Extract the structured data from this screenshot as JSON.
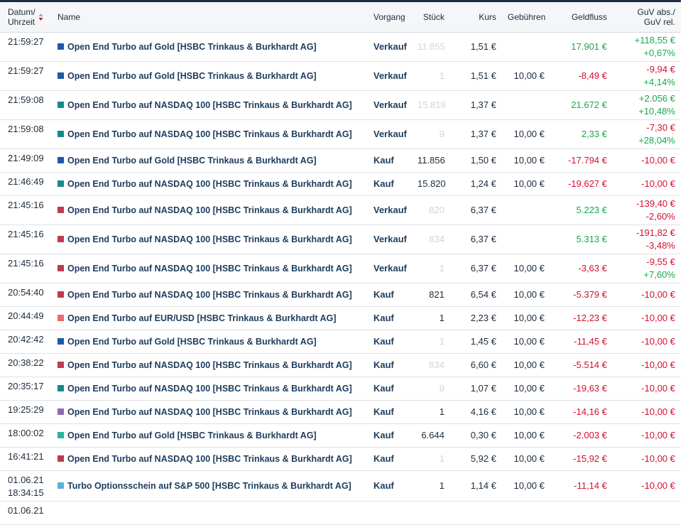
{
  "header": {
    "date": [
      "Datum/",
      "Uhrzeit"
    ],
    "name": "Name",
    "action": "Vorgang",
    "qty": "Stück",
    "price": "Kurs",
    "fees": "Gebühren",
    "cashflow": "Geldfluss",
    "pnl": [
      "GuV abs./",
      "GuV rel."
    ]
  },
  "rows": [
    {
      "time": "21:59:27",
      "color": "#1b5aa6",
      "name": "Open End Turbo auf Gold [HSBC Trinkaus & Burkhardt AG]",
      "action": "Verkauf",
      "qty": "11.855",
      "qty_faded": true,
      "price": "1,51 €",
      "cashflow": "17.901 €",
      "pnl_abs": "+118,55 €",
      "pnl_rel": "+0,67%"
    },
    {
      "time": "21:59:27",
      "color": "#1b5aa6",
      "name": "Open End Turbo auf Gold [HSBC Trinkaus & Burkhardt AG]",
      "action": "Verkauf",
      "qty": "1",
      "qty_faded": true,
      "price": "1,51 €",
      "fees": "10,00 €",
      "cashflow": "-8,49 €",
      "pnl_abs": "-9,94 €",
      "pnl_rel": "+4,14%"
    },
    {
      "time": "21:59:08",
      "color": "#168a8a",
      "name": "Open End Turbo auf NASDAQ 100 [HSBC Trinkaus & Burkhardt AG]",
      "action": "Verkauf",
      "qty": "15.819",
      "qty_faded": true,
      "price": "1,37 €",
      "cashflow": "21.672 €",
      "pnl_abs": "+2.056 €",
      "pnl_rel": "+10,48%"
    },
    {
      "time": "21:59:08",
      "color": "#168a8a",
      "name": "Open End Turbo auf NASDAQ 100 [HSBC Trinkaus & Burkhardt AG]",
      "action": "Verkauf",
      "qty": "9",
      "qty_faded": true,
      "price": "1,37 €",
      "fees": "10,00 €",
      "cashflow": "2,33 €",
      "pnl_abs": "-7,30 €",
      "pnl_rel": "+28,04%"
    },
    {
      "time": "21:49:09",
      "color": "#1b5aa6",
      "name": "Open End Turbo auf Gold [HSBC Trinkaus & Burkhardt AG]",
      "action": "Kauf",
      "qty": "11.856",
      "qty_faded": false,
      "price": "1,50 €",
      "fees": "10,00 €",
      "cashflow": "-17.794 €",
      "pnl_abs": "-10,00 €"
    },
    {
      "time": "21:46:49",
      "color": "#168a8a",
      "name": "Open End Turbo auf NASDAQ 100 [HSBC Trinkaus & Burkhardt AG]",
      "action": "Kauf",
      "qty": "15.820",
      "qty_faded": false,
      "price": "1,24 €",
      "fees": "10,00 €",
      "cashflow": "-19.627 €",
      "pnl_abs": "-10,00 €"
    },
    {
      "time": "21:45:16",
      "color": "#c03a4e",
      "name": "Open End Turbo auf NASDAQ 100 [HSBC Trinkaus & Burkhardt AG]",
      "action": "Verkauf",
      "qty": "820",
      "qty_faded": true,
      "price": "6,37 €",
      "cashflow": "5.223 €",
      "pnl_abs": "-139,40 €",
      "pnl_rel": "-2,60%"
    },
    {
      "time": "21:45:16",
      "color": "#c03a4e",
      "name": "Open End Turbo auf NASDAQ 100 [HSBC Trinkaus & Burkhardt AG]",
      "action": "Verkauf",
      "qty": "834",
      "qty_faded": true,
      "price": "6,37 €",
      "cashflow": "5.313 €",
      "pnl_abs": "-191,82 €",
      "pnl_rel": "-3,48%"
    },
    {
      "time": "21:45:16",
      "color": "#c03a4e",
      "name": "Open End Turbo auf NASDAQ 100 [HSBC Trinkaus & Burkhardt AG]",
      "action": "Verkauf",
      "qty": "1",
      "qty_faded": true,
      "price": "6,37 €",
      "fees": "10,00 €",
      "cashflow": "-3,63 €",
      "pnl_abs": "-9,55 €",
      "pnl_rel": "+7,60%"
    },
    {
      "time": "20:54:40",
      "color": "#c03a4e",
      "name": "Open End Turbo auf NASDAQ 100 [HSBC Trinkaus & Burkhardt AG]",
      "action": "Kauf",
      "qty": "821",
      "qty_faded": false,
      "price": "6,54 €",
      "fees": "10,00 €",
      "cashflow": "-5.379 €",
      "pnl_abs": "-10,00 €"
    },
    {
      "time": "20:44:49",
      "color": "#e86a6a",
      "name": "Open End Turbo auf EUR/USD [HSBC Trinkaus & Burkhardt AG]",
      "action": "Kauf",
      "qty": "1",
      "qty_faded": false,
      "price": "2,23 €",
      "fees": "10,00 €",
      "cashflow": "-12,23 €",
      "pnl_abs": "-10,00 €"
    },
    {
      "time": "20:42:42",
      "color": "#1b5aa6",
      "name": "Open End Turbo auf Gold [HSBC Trinkaus & Burkhardt AG]",
      "action": "Kauf",
      "qty": "1",
      "qty_faded": true,
      "price": "1,45 €",
      "fees": "10,00 €",
      "cashflow": "-11,45 €",
      "pnl_abs": "-10,00 €"
    },
    {
      "time": "20:38:22",
      "color": "#c03a4e",
      "name": "Open End Turbo auf NASDAQ 100 [HSBC Trinkaus & Burkhardt AG]",
      "action": "Kauf",
      "qty": "834",
      "qty_faded": true,
      "price": "6,60 €",
      "fees": "10,00 €",
      "cashflow": "-5.514 €",
      "pnl_abs": "-10,00 €"
    },
    {
      "time": "20:35:17",
      "color": "#168a8a",
      "name": "Open End Turbo auf NASDAQ 100 [HSBC Trinkaus & Burkhardt AG]",
      "action": "Kauf",
      "qty": "9",
      "qty_faded": true,
      "price": "1,07 €",
      "fees": "10,00 €",
      "cashflow": "-19,63 €",
      "pnl_abs": "-10,00 €"
    },
    {
      "time": "19:25:29",
      "color": "#8a6db0",
      "name": "Open End Turbo auf NASDAQ 100 [HSBC Trinkaus & Burkhardt AG]",
      "action": "Kauf",
      "qty": "1",
      "qty_faded": false,
      "price": "4,16 €",
      "fees": "10,00 €",
      "cashflow": "-14,16 €",
      "pnl_abs": "-10,00 €"
    },
    {
      "time": "18:00:02",
      "color": "#2bb3a0",
      "name": "Open End Turbo auf Gold [HSBC Trinkaus & Burkhardt AG]",
      "action": "Kauf",
      "qty": "6.644",
      "qty_faded": false,
      "price": "0,30 €",
      "fees": "10,00 €",
      "cashflow": "-2.003 €",
      "pnl_abs": "-10,00 €"
    },
    {
      "time": "16:41:21",
      "color": "#c03a4e",
      "name": "Open End Turbo auf NASDAQ 100 [HSBC Trinkaus & Burkhardt AG]",
      "action": "Kauf",
      "qty": "1",
      "qty_faded": true,
      "price": "5,92 €",
      "fees": "10,00 €",
      "cashflow": "-15,92 €",
      "pnl_abs": "-10,00 €"
    },
    {
      "date": "01.06.21",
      "time": "18:34:15",
      "color": "#58b3e0",
      "name": "Turbo Optionsschein auf S&P 500 [HSBC Trinkaus & Burkhardt AG]",
      "action": "Kauf",
      "qty": "1",
      "qty_faded": false,
      "price": "1,14 €",
      "fees": "10,00 €",
      "cashflow": "-11,14 €",
      "pnl_abs": "-10,00 €"
    },
    {
      "date": "01.06.21"
    }
  ]
}
